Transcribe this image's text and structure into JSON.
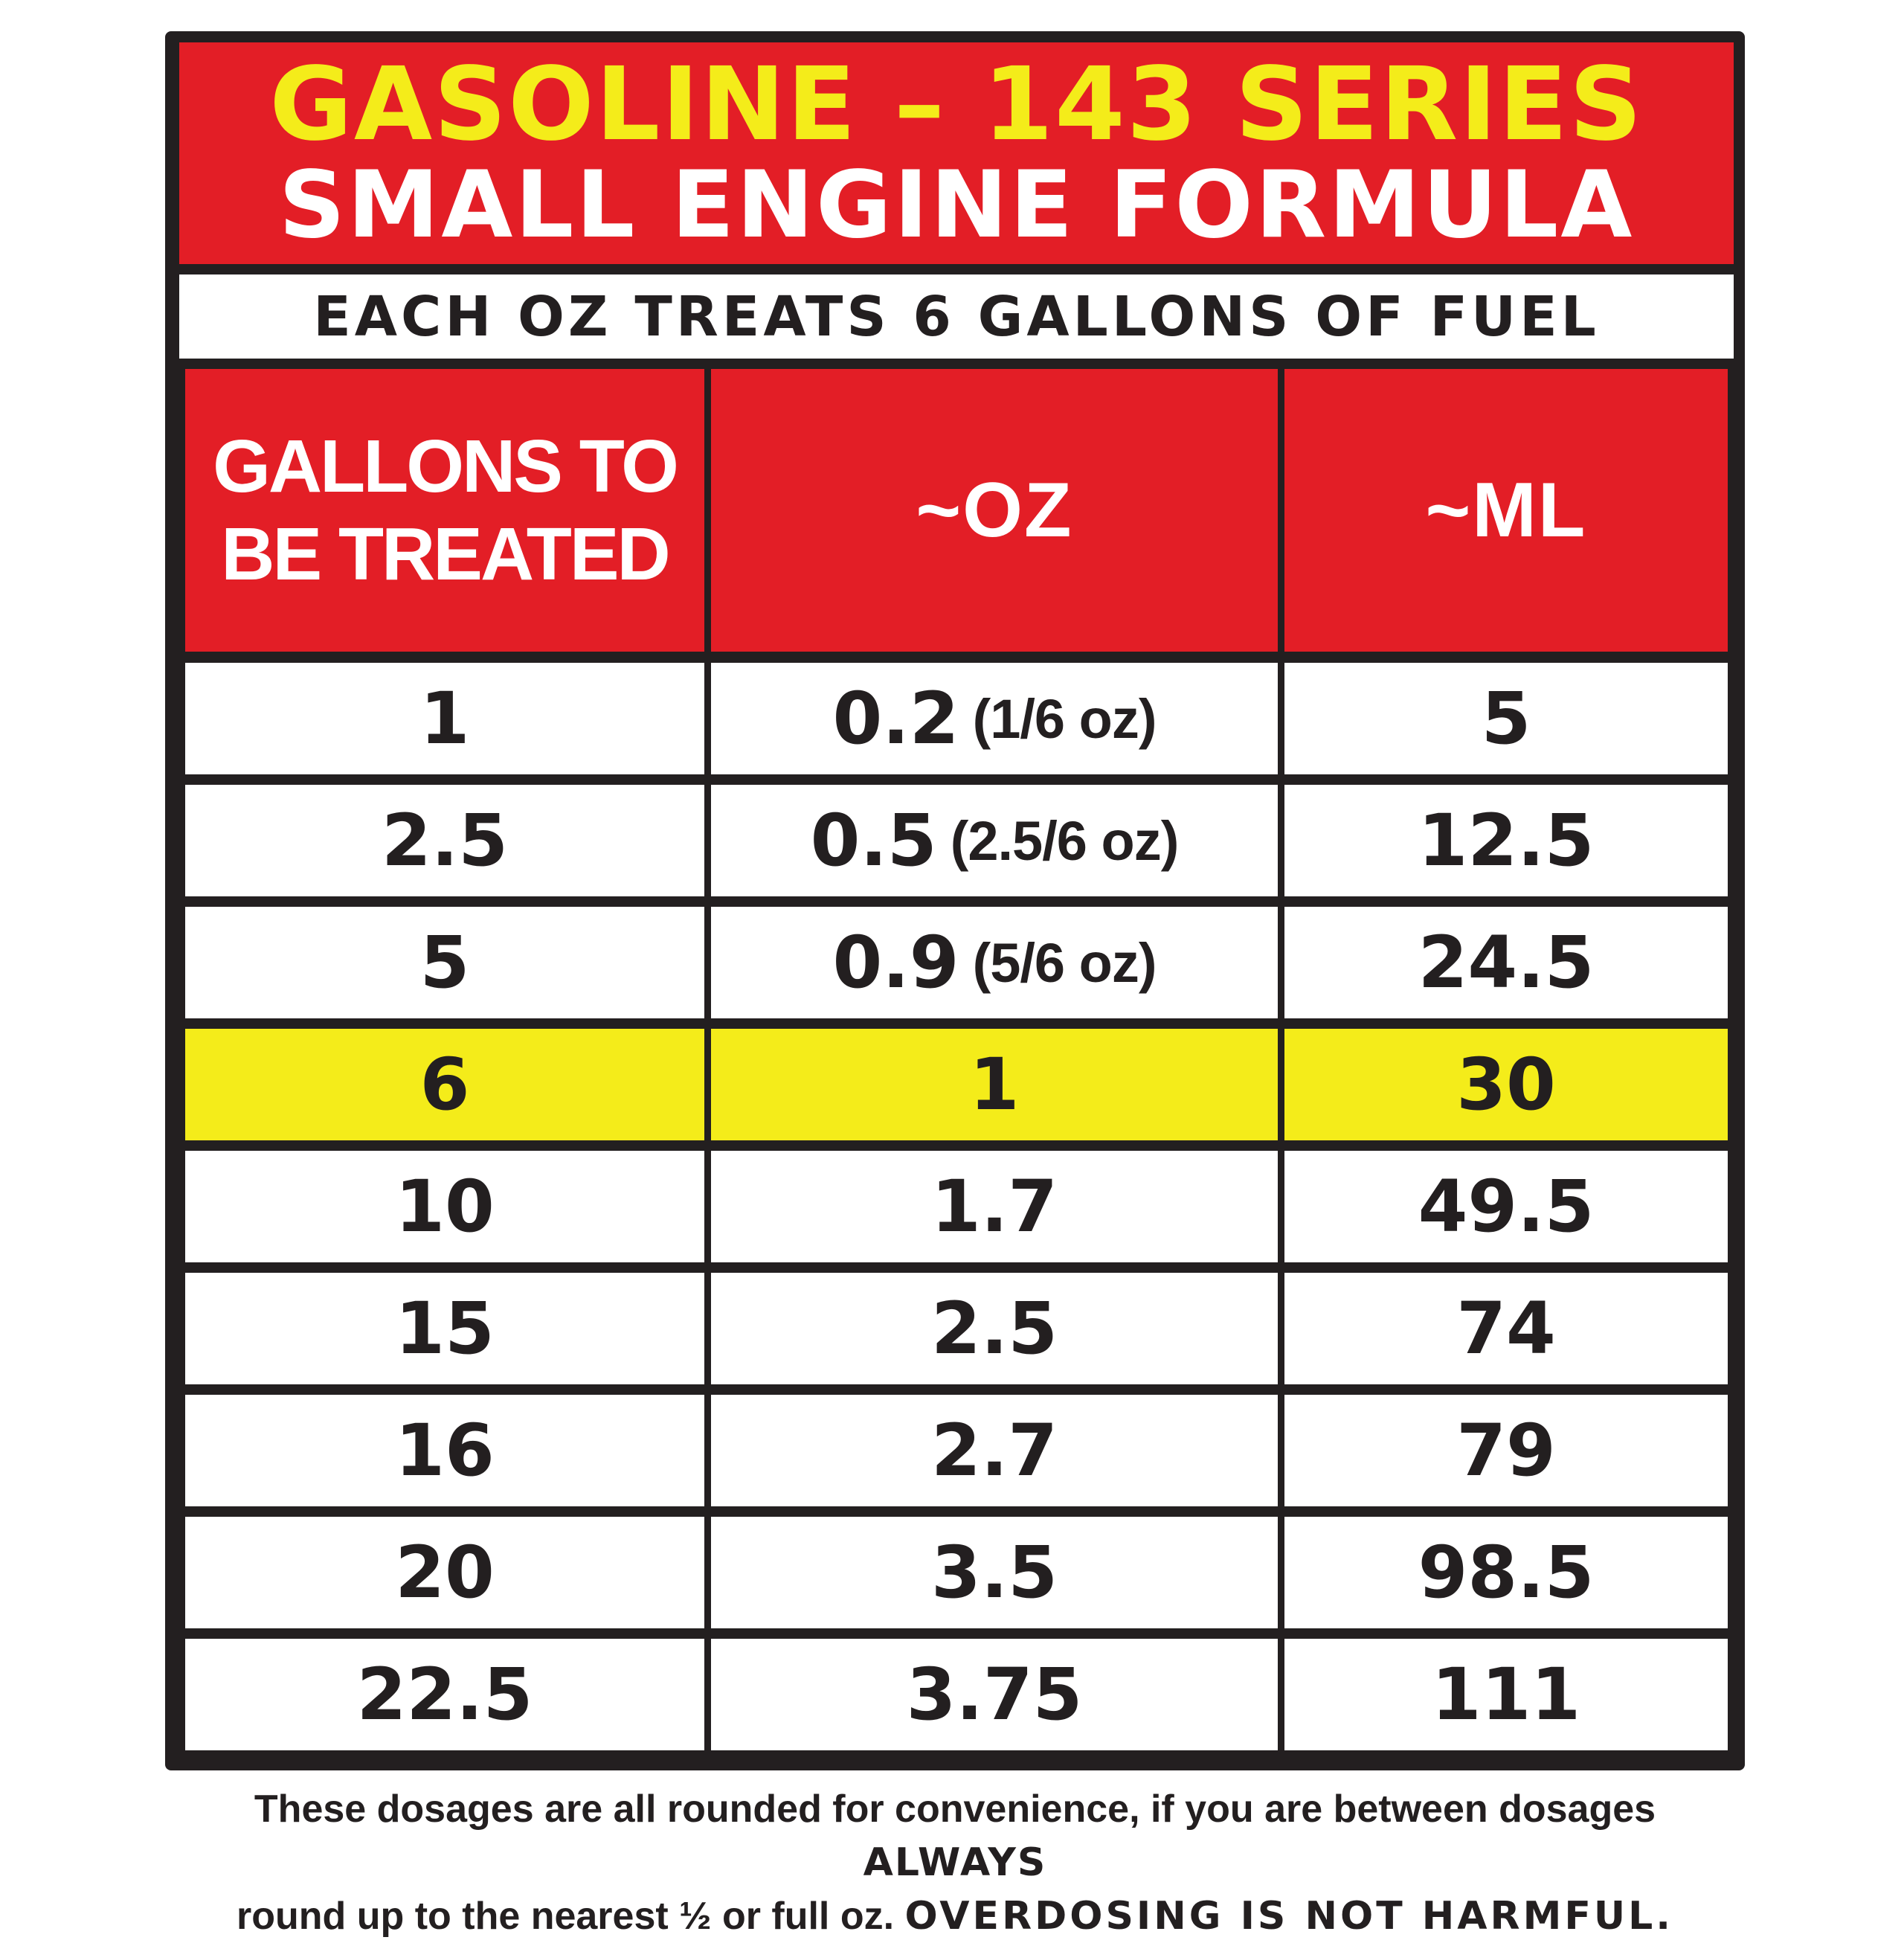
{
  "title": {
    "line1": "GASOLINE – 143 SERIES",
    "line2": "SMALL ENGINE FORMULA"
  },
  "subtitle": "EACH OZ TREATS 6 GALLONS OF FUEL",
  "table": {
    "headers": {
      "gallons_line1": "GALLONS TO",
      "gallons_line2": "BE TREATED",
      "oz": "~OZ",
      "ml": "~ML"
    },
    "rows": [
      {
        "gallons": "1",
        "oz": "0.2",
        "oz_note": "(1/6 oz)",
        "ml": "5"
      },
      {
        "gallons": "2.5",
        "oz": "0.5",
        "oz_note": "(2.5/6 oz)",
        "ml": "12.5"
      },
      {
        "gallons": "5",
        "oz": "0.9",
        "oz_note": "(5/6 oz)",
        "ml": "24.5"
      },
      {
        "gallons": "6",
        "oz": "1",
        "oz_note": "",
        "ml": "30",
        "highlight": true
      },
      {
        "gallons": "10",
        "oz": "1.7",
        "oz_note": "",
        "ml": "49.5"
      },
      {
        "gallons": "15",
        "oz": "2.5",
        "oz_note": "",
        "ml": "74"
      },
      {
        "gallons": "16",
        "oz": "2.7",
        "oz_note": "",
        "ml": "79"
      },
      {
        "gallons": "20",
        "oz": "3.5",
        "oz_note": "",
        "ml": "98.5"
      },
      {
        "gallons": "22.5",
        "oz": "3.75",
        "oz_note": "",
        "ml": "111"
      }
    ]
  },
  "footnote": {
    "part1": "These dosages are all rounded for convenience, if you are between dosages ",
    "always": "ALWAYS",
    "part2": "round up to the nearest ½ or full oz. ",
    "emphasis": "OVERDOSING IS NOT HARMFUL."
  },
  "colors": {
    "red": "#e31e26",
    "yellow": "#f4ec1a",
    "dark": "#231f20",
    "white": "#ffffff"
  }
}
